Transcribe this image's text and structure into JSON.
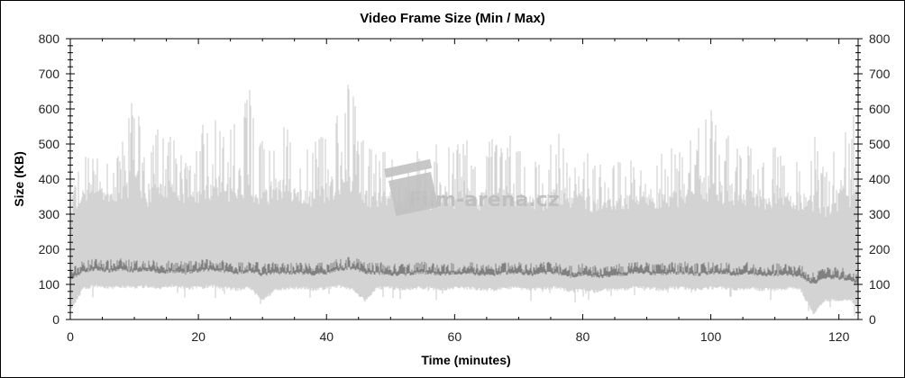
{
  "chart_data": {
    "type": "area",
    "title": "Video Frame Size (Min / Max)",
    "xlabel": "Time (minutes)",
    "ylabel": "Size (KB)",
    "xlim": [
      0,
      123
    ],
    "ylim": [
      0,
      800
    ],
    "xticks": [
      0,
      20,
      40,
      60,
      80,
      100,
      120
    ],
    "yticks": [
      0,
      100,
      200,
      300,
      400,
      500,
      600,
      700,
      800
    ],
    "grid": false,
    "watermark": "Film-arena.cz",
    "colors": {
      "max": "#d3d3d3",
      "avg": "#808080",
      "background": "#ffffff"
    },
    "x": [
      0,
      2,
      4,
      6,
      8,
      10,
      12,
      14,
      16,
      18,
      20,
      22,
      24,
      26,
      28,
      30,
      32,
      34,
      36,
      38,
      40,
      42,
      44,
      46,
      48,
      50,
      52,
      54,
      56,
      58,
      60,
      62,
      64,
      66,
      68,
      70,
      72,
      74,
      76,
      78,
      80,
      82,
      84,
      86,
      88,
      90,
      92,
      94,
      96,
      98,
      100,
      102,
      104,
      106,
      108,
      110,
      112,
      114,
      116,
      118,
      120,
      122,
      123
    ],
    "series": [
      {
        "key": "max_peak",
        "values": [
          350,
          480,
          460,
          450,
          500,
          660,
          450,
          600,
          520,
          450,
          500,
          690,
          560,
          560,
          690,
          520,
          600,
          540,
          470,
          500,
          570,
          620,
          700,
          520,
          480,
          500,
          460,
          500,
          480,
          520,
          480,
          560,
          450,
          530,
          520,
          560,
          480,
          450,
          550,
          470,
          500,
          440,
          460,
          480,
          460,
          500,
          470,
          520,
          480,
          600,
          610,
          550,
          520,
          500,
          470,
          500,
          450,
          460,
          560,
          430,
          540,
          600,
          590
        ]
      },
      {
        "key": "max_base",
        "values": [
          280,
          330,
          340,
          330,
          340,
          350,
          320,
          340,
          330,
          320,
          330,
          340,
          330,
          330,
          340,
          320,
          330,
          330,
          320,
          320,
          330,
          340,
          340,
          320,
          310,
          320,
          310,
          320,
          310,
          320,
          310,
          320,
          310,
          320,
          320,
          320,
          310,
          310,
          320,
          310,
          310,
          300,
          310,
          310,
          310,
          320,
          310,
          320,
          310,
          330,
          330,
          320,
          320,
          320,
          310,
          320,
          310,
          310,
          300,
          290,
          300,
          320,
          320
        ]
      },
      {
        "key": "min",
        "values": [
          30,
          95,
          100,
          95,
          100,
          95,
          100,
          95,
          100,
          95,
          95,
          100,
          95,
          90,
          95,
          60,
          90,
          95,
          95,
          90,
          95,
          100,
          90,
          60,
          95,
          95,
          90,
          95,
          95,
          90,
          95,
          95,
          90,
          90,
          95,
          95,
          90,
          95,
          95,
          85,
          90,
          85,
          90,
          90,
          95,
          95,
          90,
          95,
          95,
          90,
          95,
          95,
          90,
          95,
          90,
          90,
          95,
          90,
          20,
          60,
          60,
          60,
          30
        ]
      },
      {
        "key": "avg",
        "values": [
          120,
          145,
          150,
          145,
          150,
          145,
          150,
          140,
          145,
          140,
          145,
          150,
          145,
          140,
          145,
          135,
          140,
          140,
          140,
          135,
          140,
          150,
          155,
          140,
          140,
          135,
          135,
          140,
          140,
          135,
          140,
          140,
          135,
          135,
          140,
          140,
          135,
          140,
          140,
          130,
          135,
          130,
          130,
          135,
          140,
          140,
          135,
          140,
          140,
          135,
          140,
          140,
          135,
          140,
          135,
          135,
          135,
          130,
          110,
          125,
          125,
          120,
          110
        ]
      }
    ]
  }
}
